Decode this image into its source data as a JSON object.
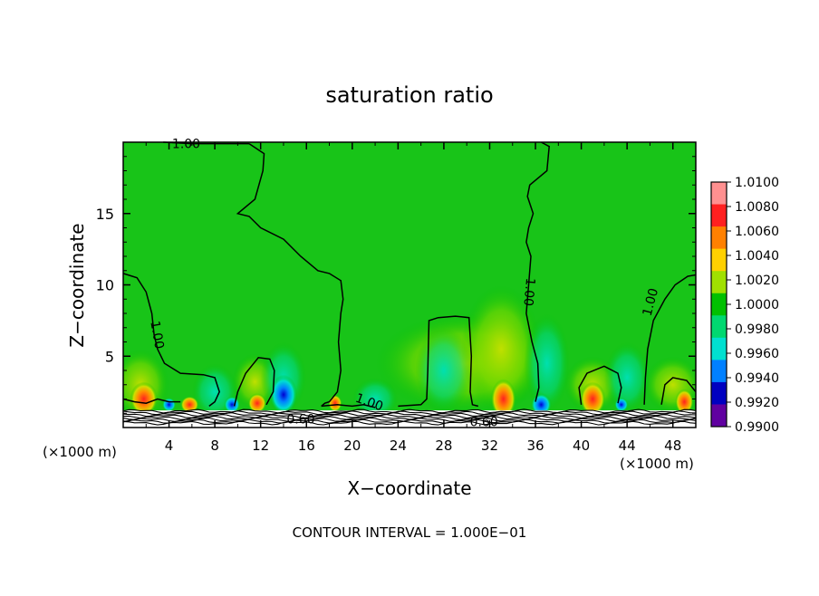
{
  "chart_data": {
    "type": "heatmap",
    "title": "saturation ratio",
    "xlabel": "X−coordinate",
    "ylabel": "Z−coordinate",
    "x_unit_left": "(×1000 m)",
    "x_unit_right": "(×1000 m)",
    "footer": "CONTOUR INTERVAL = 1.000E−01",
    "xlim": [
      0,
      50
    ],
    "ylim": [
      0,
      20
    ],
    "x_ticks": [
      4,
      8,
      12,
      16,
      20,
      24,
      28,
      32,
      36,
      40,
      44,
      48
    ],
    "y_ticks": [
      5,
      10,
      15
    ],
    "colorbar": {
      "labels": [
        "1.0100",
        "1.0080",
        "1.0060",
        "1.0040",
        "1.0020",
        "1.0000",
        "0.9980",
        "0.9960",
        "0.9940",
        "0.9920",
        "0.9900"
      ],
      "colors": [
        "#ff9090",
        "#ff2020",
        "#ff8000",
        "#ffd000",
        "#a0e000",
        "#00c000",
        "#00d870",
        "#00e0d0",
        "#0080ff",
        "#0000c0",
        "#6000a0"
      ]
    },
    "contour_labels": [
      {
        "text": "1.00",
        "x": 5.5,
        "y": 19.9
      },
      {
        "text": "1.00",
        "x": 3.0,
        "y": 6.5
      },
      {
        "text": "1.00",
        "x": 21.5,
        "y": 1.8
      },
      {
        "text": "1.00",
        "x": 35.5,
        "y": 9.5
      },
      {
        "text": "1.00",
        "x": 46.0,
        "y": 8.8
      },
      {
        "text": "0.60",
        "x": 15.5,
        "y": 0.6
      },
      {
        "text": "0.60",
        "x": 31.5,
        "y": 0.4
      }
    ],
    "contour_levels": [
      1.0,
      0.6
    ],
    "background_value": 1.0
  }
}
